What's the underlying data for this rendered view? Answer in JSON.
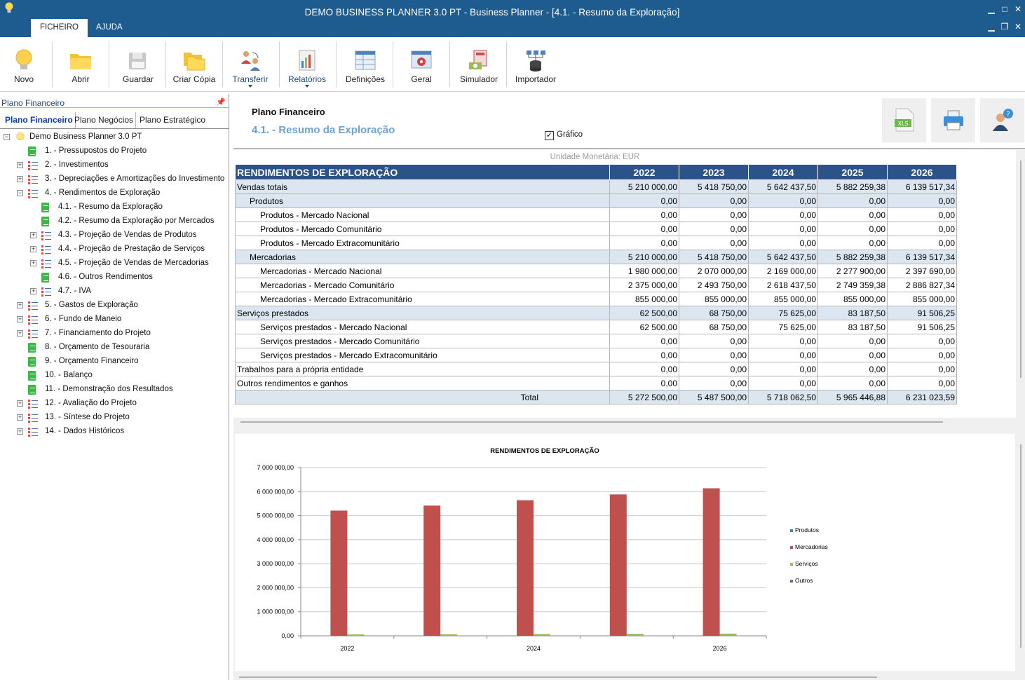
{
  "window": {
    "title": "DEMO BUSINESS PLANNER 3.0 PT - Business Planner - [4.1. - Resumo da Exploração]",
    "controls": [
      "▁",
      "□",
      "✕"
    ],
    "mdi_controls": [
      "▁",
      "❐",
      "✕"
    ],
    "menu_tabs": [
      "FICHEIRO",
      "AJUDA"
    ]
  },
  "ribbon": {
    "buttons": [
      {
        "label": "Novo",
        "icon": "lightbulb-icon"
      },
      {
        "label": "Abrir",
        "icon": "folder-icon"
      },
      {
        "label": "Guardar",
        "icon": "save-icon"
      },
      {
        "label": "Criar Cópia",
        "icon": "copy-folder-icon"
      },
      {
        "label": "Transferir",
        "icon": "transfer-users-icon"
      },
      {
        "label": "Relatórios",
        "icon": "reports-icon"
      },
      {
        "label": "Definições",
        "icon": "settings-table-icon"
      },
      {
        "label": "Geral",
        "icon": "general-gear-icon"
      },
      {
        "label": "Simulador",
        "icon": "simulator-icon"
      },
      {
        "label": "Importador",
        "icon": "importer-icon"
      }
    ]
  },
  "left_panel": {
    "title": "Plano Financeiro",
    "pin": "📌",
    "tabs": [
      "Plano Financeiro",
      "Plano Negócios",
      "Plano Estratégico"
    ],
    "tree": [
      {
        "label": "Demo Business Planner 3.0 PT",
        "icon": "root"
      },
      {
        "label": "1. - Pressupostos do Projeto",
        "icon": "doc"
      },
      {
        "label": "2. - Investimentos",
        "icon": "list"
      },
      {
        "label": "3. - Depreciações e Amortizações do Investimento",
        "icon": "list"
      },
      {
        "label": "4. - Rendimentos de Exploração",
        "icon": "list"
      },
      {
        "label": "4.1. - Resumo da Exploração",
        "icon": "doc"
      },
      {
        "label": "4.2. - Resumo da Exploração por Mercados",
        "icon": "doc"
      },
      {
        "label": "4.3. - Projeção de Vendas de Produtos",
        "icon": "list"
      },
      {
        "label": "4.4. - Projeção  de Prestação de Serviços",
        "icon": "list"
      },
      {
        "label": "4.5. - Projeção de Vendas de Mercadorias",
        "icon": "list"
      },
      {
        "label": "4.6. - Outros Rendimentos",
        "icon": "doc"
      },
      {
        "label": "4.7. - IVA",
        "icon": "list"
      },
      {
        "label": "5. - Gastos de Exploração",
        "icon": "list"
      },
      {
        "label": "6. - Fundo de Maneio",
        "icon": "list"
      },
      {
        "label": "7. - Financiamento do Projeto",
        "icon": "list"
      },
      {
        "label": "8. - Orçamento de Tesouraria",
        "icon": "doc"
      },
      {
        "label": "9. - Orçamento Financeiro",
        "icon": "doc"
      },
      {
        "label": "10. - Balanço",
        "icon": "doc"
      },
      {
        "label": "11. - Demonstração dos Resultados",
        "icon": "doc"
      },
      {
        "label": "12. - Avaliação do Projeto",
        "icon": "list"
      },
      {
        "label": "13. - Síntese do Projeto",
        "icon": "list"
      },
      {
        "label": "14. - Dados Históricos",
        "icon": "list"
      }
    ]
  },
  "content": {
    "title": "Plano Financeiro",
    "subtitle": "4.1. - Resumo da Exploração",
    "chart_toggle": {
      "label": "Gráfico",
      "checked": true,
      "mark": "✓"
    },
    "header_buttons": [
      {
        "name": "export-xls",
        "icon": "xls-icon",
        "text": "XLS"
      },
      {
        "name": "print",
        "icon": "printer-icon"
      },
      {
        "name": "help",
        "icon": "help-user-icon"
      }
    ],
    "unit_label": "Unidade Monetária: EUR"
  },
  "table": {
    "header": "RENDIMENTOS DE EXPLORAÇÃO",
    "years": [
      "2022",
      "2023",
      "2024",
      "2025",
      "2026"
    ],
    "rows": [
      {
        "label": "Vendas totais",
        "level": 1,
        "values": [
          "5 210 000,00",
          "5 418 750,00",
          "5 642 437,50",
          "5 882 259,38",
          "6 139 517,34"
        ]
      },
      {
        "label": "Produtos",
        "level": 2,
        "values": [
          "0,00",
          "0,00",
          "0,00",
          "0,00",
          "0,00"
        ]
      },
      {
        "label": "Produtos  - Mercado Nacional",
        "level": 3,
        "values": [
          "0,00",
          "0,00",
          "0,00",
          "0,00",
          "0,00"
        ]
      },
      {
        "label": "Produtos  - Mercado Comunitário",
        "level": 3,
        "values": [
          "0,00",
          "0,00",
          "0,00",
          "0,00",
          "0,00"
        ]
      },
      {
        "label": "Produtos  - Mercado Extracomunitário",
        "level": 3,
        "values": [
          "0,00",
          "0,00",
          "0,00",
          "0,00",
          "0,00"
        ]
      },
      {
        "label": "Mercadorias",
        "level": 2,
        "values": [
          "5 210 000,00",
          "5 418 750,00",
          "5 642 437,50",
          "5 882 259,38",
          "6 139 517,34"
        ]
      },
      {
        "label": "Mercadorias  - Mercado Nacional",
        "level": 3,
        "values": [
          "1 980 000,00",
          "2 070 000,00",
          "2 169 000,00",
          "2 277 900,00",
          "2 397 690,00"
        ]
      },
      {
        "label": "Mercadorias  - Mercado Comunitário",
        "level": 3,
        "values": [
          "2 375 000,00",
          "2 493 750,00",
          "2 618 437,50",
          "2 749 359,38",
          "2 886 827,34"
        ]
      },
      {
        "label": "Mercadorias  - Mercado Extracomunitário",
        "level": 3,
        "values": [
          "855 000,00",
          "855 000,00",
          "855 000,00",
          "855 000,00",
          "855 000,00"
        ]
      },
      {
        "label": "Serviços prestados",
        "level": 1,
        "values": [
          "62 500,00",
          "68 750,00",
          "75 625,00",
          "83 187,50",
          "91 506,25"
        ]
      },
      {
        "label": "Serviços prestados  - Mercado Nacional",
        "level": 3,
        "values": [
          "62 500,00",
          "68 750,00",
          "75 625,00",
          "83 187,50",
          "91 506,25"
        ]
      },
      {
        "label": "Serviços prestados  - Mercado Comunitário",
        "level": 3,
        "values": [
          "0,00",
          "0,00",
          "0,00",
          "0,00",
          "0,00"
        ]
      },
      {
        "label": "Serviços prestados  - Mercado Extracomunitário",
        "level": 3,
        "values": [
          "0,00",
          "0,00",
          "0,00",
          "0,00",
          "0,00"
        ]
      },
      {
        "label": "Trabalhos para a própria entidade",
        "level": 0,
        "values": [
          "0,00",
          "0,00",
          "0,00",
          "0,00",
          "0,00"
        ]
      },
      {
        "label": "Outros rendimentos e ganhos",
        "level": 0,
        "values": [
          "0,00",
          "0,00",
          "0,00",
          "0,00",
          "0,00"
        ]
      },
      {
        "label": "Total",
        "level": 9,
        "values": [
          "5 272 500,00",
          "5 487 500,00",
          "5 718 062,50",
          "5 965 446,88",
          "6 231 023,59"
        ]
      }
    ]
  },
  "chart_data": {
    "type": "bar",
    "title": "RENDIMENTOS DE EXPLORAÇÃO",
    "categories": [
      "2022",
      "2023",
      "2024",
      "2025",
      "2026"
    ],
    "x_tick_labels": [
      "2022",
      "",
      "2024",
      "",
      "2026"
    ],
    "y_ticks": [
      "0,00",
      "1 000 000,00",
      "2 000 000,00",
      "3 000 000,00",
      "4 000 000,00",
      "5 000 000,00",
      "6 000 000,00",
      "7 000 000,00"
    ],
    "ylim": [
      0,
      7000000
    ],
    "legend_position": "right",
    "series": [
      {
        "name": "Produtos",
        "color": "#4f81bd",
        "values": [
          0,
          0,
          0,
          0,
          0
        ]
      },
      {
        "name": "Mercadorias",
        "color": "#c0504d",
        "values": [
          5210000,
          5418750,
          5642437.5,
          5882259.38,
          6139517.34
        ]
      },
      {
        "name": "Serviços",
        "color": "#9bbb59",
        "values": [
          62500,
          68750,
          75625,
          83187.5,
          91506.25
        ]
      },
      {
        "name": "Outros",
        "color": "#8064a2",
        "values": [
          0,
          0,
          0,
          0,
          0
        ]
      }
    ]
  }
}
